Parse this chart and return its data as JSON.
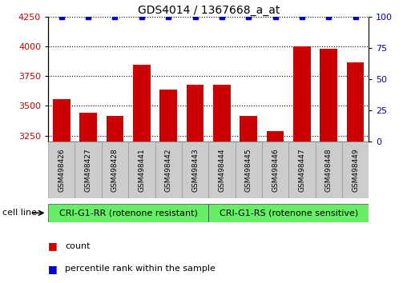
{
  "title": "GDS4014 / 1367668_a_at",
  "samples": [
    "GSM498426",
    "GSM498427",
    "GSM498428",
    "GSM498441",
    "GSM498442",
    "GSM498443",
    "GSM498444",
    "GSM498445",
    "GSM498446",
    "GSM498447",
    "GSM498448",
    "GSM498449"
  ],
  "counts": [
    3560,
    3440,
    3415,
    3850,
    3640,
    3680,
    3680,
    3415,
    3290,
    4005,
    3980,
    3870
  ],
  "percentile_ranks": [
    100,
    100,
    100,
    100,
    100,
    100,
    100,
    100,
    100,
    100,
    100,
    100
  ],
  "bar_color": "#cc0000",
  "dot_color": "#0000cc",
  "ylim_left": [
    3200,
    4250
  ],
  "ylim_right": [
    0,
    100
  ],
  "yticks_left": [
    3250,
    3500,
    3750,
    4000,
    4250
  ],
  "yticks_right": [
    0,
    25,
    50,
    75,
    100
  ],
  "group1_label": "CRI-G1-RR (rotenone resistant)",
  "group2_label": "CRI-G1-RS (rotenone sensitive)",
  "group1_indices": [
    0,
    1,
    2,
    3,
    4,
    5
  ],
  "group2_indices": [
    6,
    7,
    8,
    9,
    10,
    11
  ],
  "group_color": "#66ee66",
  "cell_line_label": "cell line",
  "legend_count_label": "count",
  "legend_percentile_label": "percentile rank within the sample",
  "plot_bg": "#ffffff",
  "grid_color": "#000000",
  "box_color": "#cccccc",
  "title_fontsize": 10,
  "tick_fontsize": 8,
  "label_fontsize": 8,
  "sample_fontsize": 6.5,
  "group_fontsize": 8
}
